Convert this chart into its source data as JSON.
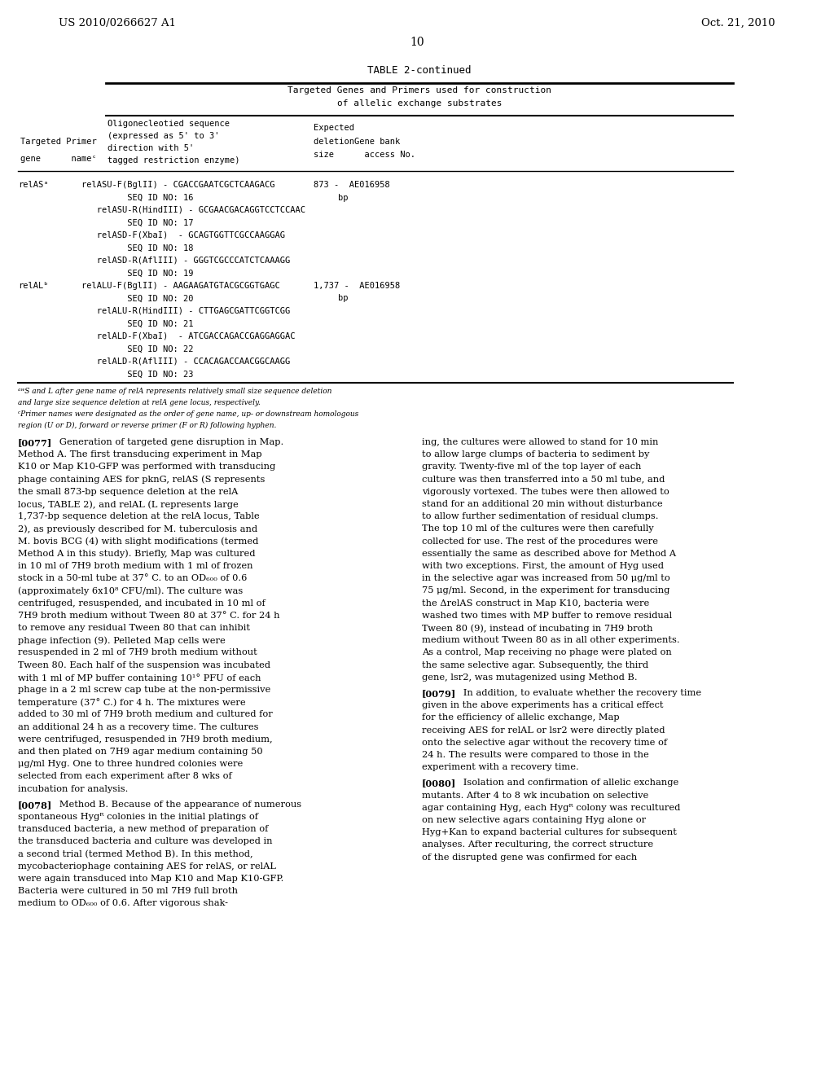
{
  "bg_color": "#ffffff",
  "page_width": 10.24,
  "page_height": 13.2,
  "header_left": "US 2010/0266627 A1",
  "header_right": "Oct. 21, 2010",
  "page_number": "10",
  "table_title": "TABLE 2-continued",
  "table_header1": "Targeted Genes and Primers used for construction",
  "table_header2": "of allelic exchange substrates",
  "col_headers": [
    "Oligonecleotied sequence",
    "(expressed as 5' to 3'",
    "direction with 5'",
    "tagged restriction enzyme)",
    "Expected",
    "deletionGene bank",
    "size      access No."
  ],
  "col_header_left1": "Targeted Primer",
  "col_header_left2": "gene      nameᶜ",
  "table_rows": [
    {
      "gene": "relASᵃ",
      "primer": "relASU-F(BglII) - CGACCGAATCGCTCAAGACG",
      "size": "873 -  AE016958",
      "size2": "bp"
    },
    {
      "gene": "",
      "primer": "         SEQ ID NO: 16",
      "size": "",
      "size2": ""
    },
    {
      "gene": "",
      "primer": "   relASU-R(HindIII) - GCGAACGACAGGTCCTCCAAC",
      "size": "",
      "size2": ""
    },
    {
      "gene": "",
      "primer": "         SEQ ID NO: 17",
      "size": "",
      "size2": ""
    },
    {
      "gene": "",
      "primer": "   relASD-F(XbaI)  - GCAGTGGTTCGCCAAGGAG",
      "size": "",
      "size2": ""
    },
    {
      "gene": "",
      "primer": "         SEQ ID NO: 18",
      "size": "",
      "size2": ""
    },
    {
      "gene": "",
      "primer": "   relASD-R(AflIII) - GGGTCGCCCATCTCAAAGG",
      "size": "",
      "size2": ""
    },
    {
      "gene": "",
      "primer": "         SEQ ID NO: 19",
      "size": "",
      "size2": ""
    },
    {
      "gene": "relALᵇ",
      "primer": "relALU-F(BglII) - AAGAAGATGTACGCGGTGAGC",
      "size": "1,737 -  AE016958",
      "size2": "bp"
    },
    {
      "gene": "",
      "primer": "         SEQ ID NO: 20",
      "size": "",
      "size2": ""
    },
    {
      "gene": "",
      "primer": "   relALU-R(HindIII) - CTTGAGCGATTCGGTCGG",
      "size": "",
      "size2": ""
    },
    {
      "gene": "",
      "primer": "         SEQ ID NO: 21",
      "size": "",
      "size2": ""
    },
    {
      "gene": "",
      "primer": "   relALD-F(XbaI)  - ATCGACCAGACCGAGGAGGAC",
      "size": "",
      "size2": ""
    },
    {
      "gene": "",
      "primer": "         SEQ ID NO: 22",
      "size": "",
      "size2": ""
    },
    {
      "gene": "",
      "primer": "   relALD-R(AflIII) - CCACAGACCAACGGCAAGG",
      "size": "",
      "size2": ""
    },
    {
      "gene": "",
      "primer": "         SEQ ID NO: 23",
      "size": "",
      "size2": ""
    }
  ],
  "footnote1": "ᵃʷS and L after gene name of relA represents relatively small size sequence deletion",
  "footnote2": "and large size sequence deletion at relA gene locus, respectively.",
  "footnote3": "ᶜPrimer names were designated as the order of gene name, up- or downstream homologous",
  "footnote4": "region (U or D), forward or reverse primer (F or R) following hyphen.",
  "para1_num": "[0077]",
  "para1_left": "Generation of targeted gene disruption in Map. Method A. The first transducing experiment in Map K10 or Map K10-GFP was performed with transducing phage containing AES for pknG, relAS (S represents the small 873-bp sequence deletion at the relA locus, TABLE 2), and relAL (L represents large 1,737-bp sequence deletion at the relA locus, Table 2), as previously described for Μ. tuberculosis and Μ. bovis BCG (4) with slight modifications (termed Method A in this study). Briefly, Map was cultured in 10 ml of 7H9 broth medium with 1 ml of frozen stock in a 50-ml tube at 37° C. to an OD₆₀₀ of 0.6 (approximately 6x10⁸ CFU/ml). The culture was centrifuged, resuspended, and incubated in 10 ml of 7H9 broth medium without Tween 80 at 37° C. for 24 h to remove any residual Tween 80 that can inhibit phage infection (9). Pelleted Map cells were resuspended in 2 ml of 7H9 broth medium without Tween 80. Each half of the suspension was incubated with 1 ml of MP buffer containing 10¹° PFU of each phage in a 2 ml screw cap tube at the non-permissive temperature (37° C.) for 4 h. The mixtures were added to 30 ml of 7H9 broth medium and cultured for an additional 24 h as a recovery time. The cultures were centrifuged, resuspended in 7H9 broth medium, and then plated on 7H9 agar medium containing 50 μg/ml Hyg. One to three hundred colonies were selected from each experiment after 8 wks of incubation for analysis.",
  "para1_right": "ing, the cultures were allowed to stand for 10 min to allow large clumps of bacteria to sediment by gravity. Twenty-five ml of the top layer of each culture was then transferred into a 50 ml tube, and vigorously vortexed. The tubes were then allowed to stand for an additional 20 min without disturbance to allow further sedimentation of residual clumps. The top 10 ml of the cultures were then carefully collected for use. The rest of the procedures were essentially the same as described above for Method A with two exceptions. First, the amount of Hyg used in the selective agar was increased from 50 μg/ml to 75 μg/ml. Second, in the experiment for transducing the ΔrelAS construct in Map K10, bacteria were washed two times with MP buffer to remove residual Tween 80 (9), instead of incubating in 7H9 broth medium without Tween 80 as in all other experiments. As a control, Map receiving no phage were plated on the same selective agar. Subsequently, the third gene, lsr2, was mutagenized using Method B.",
  "para2_num": "[0078]",
  "para2_left": "Method B. Because of the appearance of numerous spontaneous Hygᴿ colonies in the initial platings of transduced bacteria, a new method of preparation of the transduced bacteria and culture was developed in a second trial (termed Method B). In this method, mycobacteriophage containing AES for relAS, or relAL were again transduced into Map K10 and Map K10-GFP. Bacteria were cultured in 50 ml 7H9 full broth medium to OD₆₀₀ of 0.6. After vigorous shak-",
  "para3_num": "[0079]",
  "para3_right": "In addition, to evaluate whether the recovery time given in the above experiments has a critical effect for the efficiency of allelic exchange, Map receiving AES for relAL or lsr2 were directly plated onto the selective agar without the recovery time of 24 h. The results were compared to those in the experiment with a recovery time.",
  "para4_num": "[0080]",
  "para4_right": "Isolation and confirmation of allelic exchange mutants. After 4 to 8 wk incubation on selective agar containing Hyg, each Hygᴿ colony was recultured on new selective agars containing Hyg alone or Hyg+Kan to expand bacterial cultures for subsequent analyses. After reculturing, the correct structure of the disrupted gene was confirmed for each"
}
